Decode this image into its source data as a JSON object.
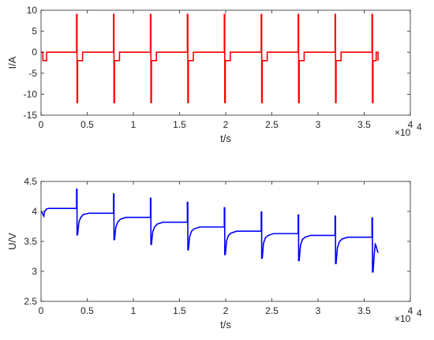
{
  "chart_data": [
    {
      "type": "line",
      "xlabel": "t/s",
      "ylabel": "I/A",
      "x_multiplier": "×10",
      "x_multiplier_exp": "4",
      "xlim": [
        0,
        40000
      ],
      "ylim": [
        -15,
        10
      ],
      "xticks": [
        0,
        5000,
        10000,
        15000,
        20000,
        25000,
        30000,
        35000,
        40000
      ],
      "xtick_labels": [
        "0",
        "0.5",
        "1",
        "1.5",
        "2",
        "2.5",
        "3",
        "3.5",
        "4"
      ],
      "yticks": [
        -15,
        -10,
        -5,
        0,
        5,
        10
      ],
      "ytick_labels": [
        "-15",
        "-10",
        "-5",
        "0",
        "5",
        "10"
      ],
      "grid": false,
      "series": [
        {
          "color": "#ff0000",
          "x": [
            0,
            200,
            200,
            600,
            600,
            3800,
            3850,
            3850,
            3900,
            3900,
            3960,
            3960,
            4500,
            4500,
            7800,
            7850,
            7850,
            7900,
            7900,
            7960,
            7960,
            8500,
            8500,
            11800,
            11850,
            11850,
            11900,
            11900,
            11960,
            11960,
            12500,
            12500,
            15800,
            15850,
            15850,
            15900,
            15900,
            15960,
            15960,
            16500,
            16500,
            19800,
            19850,
            19850,
            19900,
            19900,
            19960,
            19960,
            20500,
            20500,
            23800,
            23850,
            23850,
            23900,
            23900,
            23960,
            23960,
            24500,
            24500,
            27800,
            27850,
            27850,
            27900,
            27900,
            27960,
            27960,
            28500,
            28500,
            31800,
            31850,
            31850,
            31900,
            31900,
            31960,
            31960,
            32500,
            32500,
            35800,
            35850,
            35850,
            35900,
            35900,
            35960,
            35960,
            36300,
            36300,
            36500,
            36500
          ],
          "y": [
            0,
            0,
            -2,
            -2,
            0,
            0,
            0,
            9,
            9,
            -12,
            -12,
            -2,
            -2,
            0,
            0,
            0,
            9,
            9,
            -12,
            -12,
            -2,
            -2,
            0,
            0,
            0,
            9,
            9,
            -12,
            -12,
            -2,
            -2,
            0,
            0,
            0,
            9,
            9,
            -12,
            -12,
            -2,
            -2,
            0,
            0,
            0,
            9,
            9,
            -12,
            -12,
            -2,
            -2,
            0,
            0,
            0,
            9,
            9,
            -12,
            -12,
            -2,
            -2,
            0,
            0,
            0,
            9,
            9,
            -12,
            -12,
            -2,
            -2,
            0,
            0,
            0,
            9,
            9,
            -12,
            -12,
            -2,
            -2,
            0,
            0,
            0,
            9,
            9,
            -12,
            -12,
            -2,
            -2,
            0,
            0,
            -2
          ]
        }
      ]
    },
    {
      "type": "line",
      "xlabel": "t/s",
      "ylabel": "U/V",
      "x_multiplier": "×10",
      "x_multiplier_exp": "4",
      "xlim": [
        0,
        40000
      ],
      "ylim": [
        2.5,
        4.5
      ],
      "xticks": [
        0,
        5000,
        10000,
        15000,
        20000,
        25000,
        30000,
        35000,
        40000
      ],
      "xtick_labels": [
        "0",
        "0.5",
        "1",
        "1.5",
        "2",
        "2.5",
        "3",
        "3.5",
        "4"
      ],
      "yticks": [
        2.5,
        3,
        3.5,
        4,
        4.5
      ],
      "ytick_labels": [
        "2.5",
        "3",
        "3.5",
        "4",
        "4.5"
      ],
      "grid": false,
      "series": [
        {
          "color": "#0000ff",
          "x": [
            0,
            100,
            200,
            300,
            400,
            600,
            800,
            3850,
            3850,
            3900,
            3900,
            3960,
            4100,
            4300,
            4600,
            5200,
            7850,
            7850,
            7900,
            7900,
            7960,
            8100,
            8300,
            8600,
            9200,
            11850,
            11850,
            11900,
            11900,
            11960,
            12100,
            12300,
            12600,
            13200,
            15850,
            15850,
            15900,
            15900,
            15960,
            16100,
            16300,
            16600,
            17200,
            19850,
            19850,
            19900,
            19900,
            19960,
            20100,
            20300,
            20600,
            21200,
            23850,
            23850,
            23900,
            23900,
            23960,
            24100,
            24300,
            24600,
            25200,
            27850,
            27850,
            27900,
            27900,
            27960,
            28100,
            28300,
            28600,
            29200,
            31850,
            31850,
            31900,
            31900,
            31960,
            32100,
            32300,
            32600,
            33200,
            35850,
            35850,
            35900,
            35900,
            35960,
            36100,
            36200,
            36300,
            36400,
            36500
          ],
          "y": [
            4.0,
            3.98,
            3.95,
            3.92,
            4.0,
            4.04,
            4.05,
            4.05,
            4.37,
            4.37,
            3.61,
            3.61,
            3.82,
            3.9,
            3.95,
            3.97,
            3.97,
            4.29,
            4.29,
            3.53,
            3.53,
            3.74,
            3.82,
            3.87,
            3.9,
            3.9,
            4.22,
            4.22,
            3.45,
            3.45,
            3.66,
            3.74,
            3.79,
            3.82,
            3.82,
            4.15,
            4.15,
            3.36,
            3.36,
            3.58,
            3.67,
            3.71,
            3.74,
            3.74,
            4.06,
            4.06,
            3.28,
            3.28,
            3.51,
            3.6,
            3.64,
            3.67,
            3.67,
            3.99,
            3.99,
            3.22,
            3.22,
            3.47,
            3.56,
            3.6,
            3.63,
            3.63,
            3.94,
            3.94,
            3.18,
            3.18,
            3.43,
            3.53,
            3.57,
            3.6,
            3.6,
            3.92,
            3.92,
            3.13,
            3.13,
            3.39,
            3.49,
            3.54,
            3.57,
            3.57,
            3.89,
            3.89,
            2.99,
            2.99,
            3.3,
            3.45,
            3.42,
            3.36,
            3.31
          ]
        }
      ]
    }
  ]
}
